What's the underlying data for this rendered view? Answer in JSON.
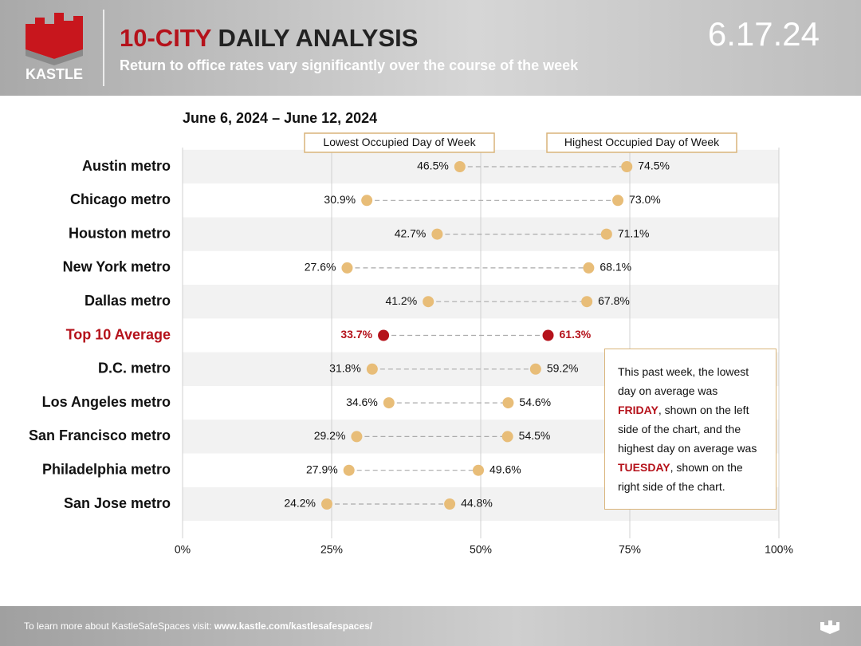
{
  "brand": "KASTLE",
  "header": {
    "title_accent": "10-CITY",
    "title": "DAILY ANALYSIS",
    "subtitle": "Return to office rates vary significantly over the course of the week",
    "date": "6.17.24"
  },
  "chart_data": {
    "type": "dumbbell",
    "title": "June 6, 2024 – June 12, 2024",
    "categories": [
      "Austin metro",
      "Chicago metro",
      "Houston metro",
      "New York metro",
      "Dallas metro",
      "Top 10 Average",
      "D.C. metro",
      "Los Angeles metro",
      "San Francisco metro",
      "Philadelphia metro",
      "San Jose metro"
    ],
    "category_colors": [
      "#111111",
      "#111111",
      "#111111",
      "#111111",
      "#111111",
      "#b5121b",
      "#111111",
      "#111111",
      "#111111",
      "#111111",
      "#111111"
    ],
    "series": [
      {
        "name": "Lowest Occupied Day of Week",
        "values": [
          46.5,
          30.9,
          42.7,
          27.6,
          41.2,
          33.7,
          31.8,
          34.6,
          29.2,
          27.9,
          24.2
        ],
        "value_labels": [
          "46.5%",
          "30.9%",
          "42.7%",
          "27.6%",
          "41.2%",
          "33.7%",
          "31.8%",
          "34.6%",
          "29.2%",
          "27.9%",
          "24.2%"
        ],
        "colors": [
          "#e8bd78",
          "#e8bd78",
          "#e8bd78",
          "#e8bd78",
          "#e8bd78",
          "#b5121b",
          "#e8bd78",
          "#e8bd78",
          "#e8bd78",
          "#e8bd78",
          "#e8bd78"
        ]
      },
      {
        "name": "Highest Occupied Day of Week",
        "values": [
          74.5,
          73.0,
          71.1,
          68.1,
          67.8,
          61.3,
          59.2,
          54.6,
          54.5,
          49.6,
          44.8
        ],
        "value_labels": [
          "74.5%",
          "73.0%",
          "71.1%",
          "68.1%",
          "67.8%",
          "61.3%",
          "59.2%",
          "54.6%",
          "54.5%",
          "49.6%",
          "44.8%"
        ],
        "colors": [
          "#e8bd78",
          "#e8bd78",
          "#e8bd78",
          "#e8bd78",
          "#e8bd78",
          "#b5121b",
          "#e8bd78",
          "#e8bd78",
          "#e8bd78",
          "#e8bd78",
          "#e8bd78"
        ]
      }
    ],
    "xlim": [
      0,
      100
    ],
    "xticks": [
      {
        "value": 0,
        "label": "0%"
      },
      {
        "value": 25,
        "label": "25%"
      },
      {
        "value": 50,
        "label": "50%"
      },
      {
        "value": 75,
        "label": "75%"
      },
      {
        "value": 100,
        "label": "100%"
      }
    ],
    "grid": true,
    "annotation": [
      "This past week, the lowest day on average was ",
      "FRIDAY",
      ", shown on the left side of the chart, and the highest day on average was ",
      "TUESDAY",
      ", shown on the right side of the chart."
    ]
  },
  "footer": {
    "text": "To learn more about KastleSafeSpaces visit: ",
    "link": "www.kastle.com/kastlesafespaces/"
  }
}
